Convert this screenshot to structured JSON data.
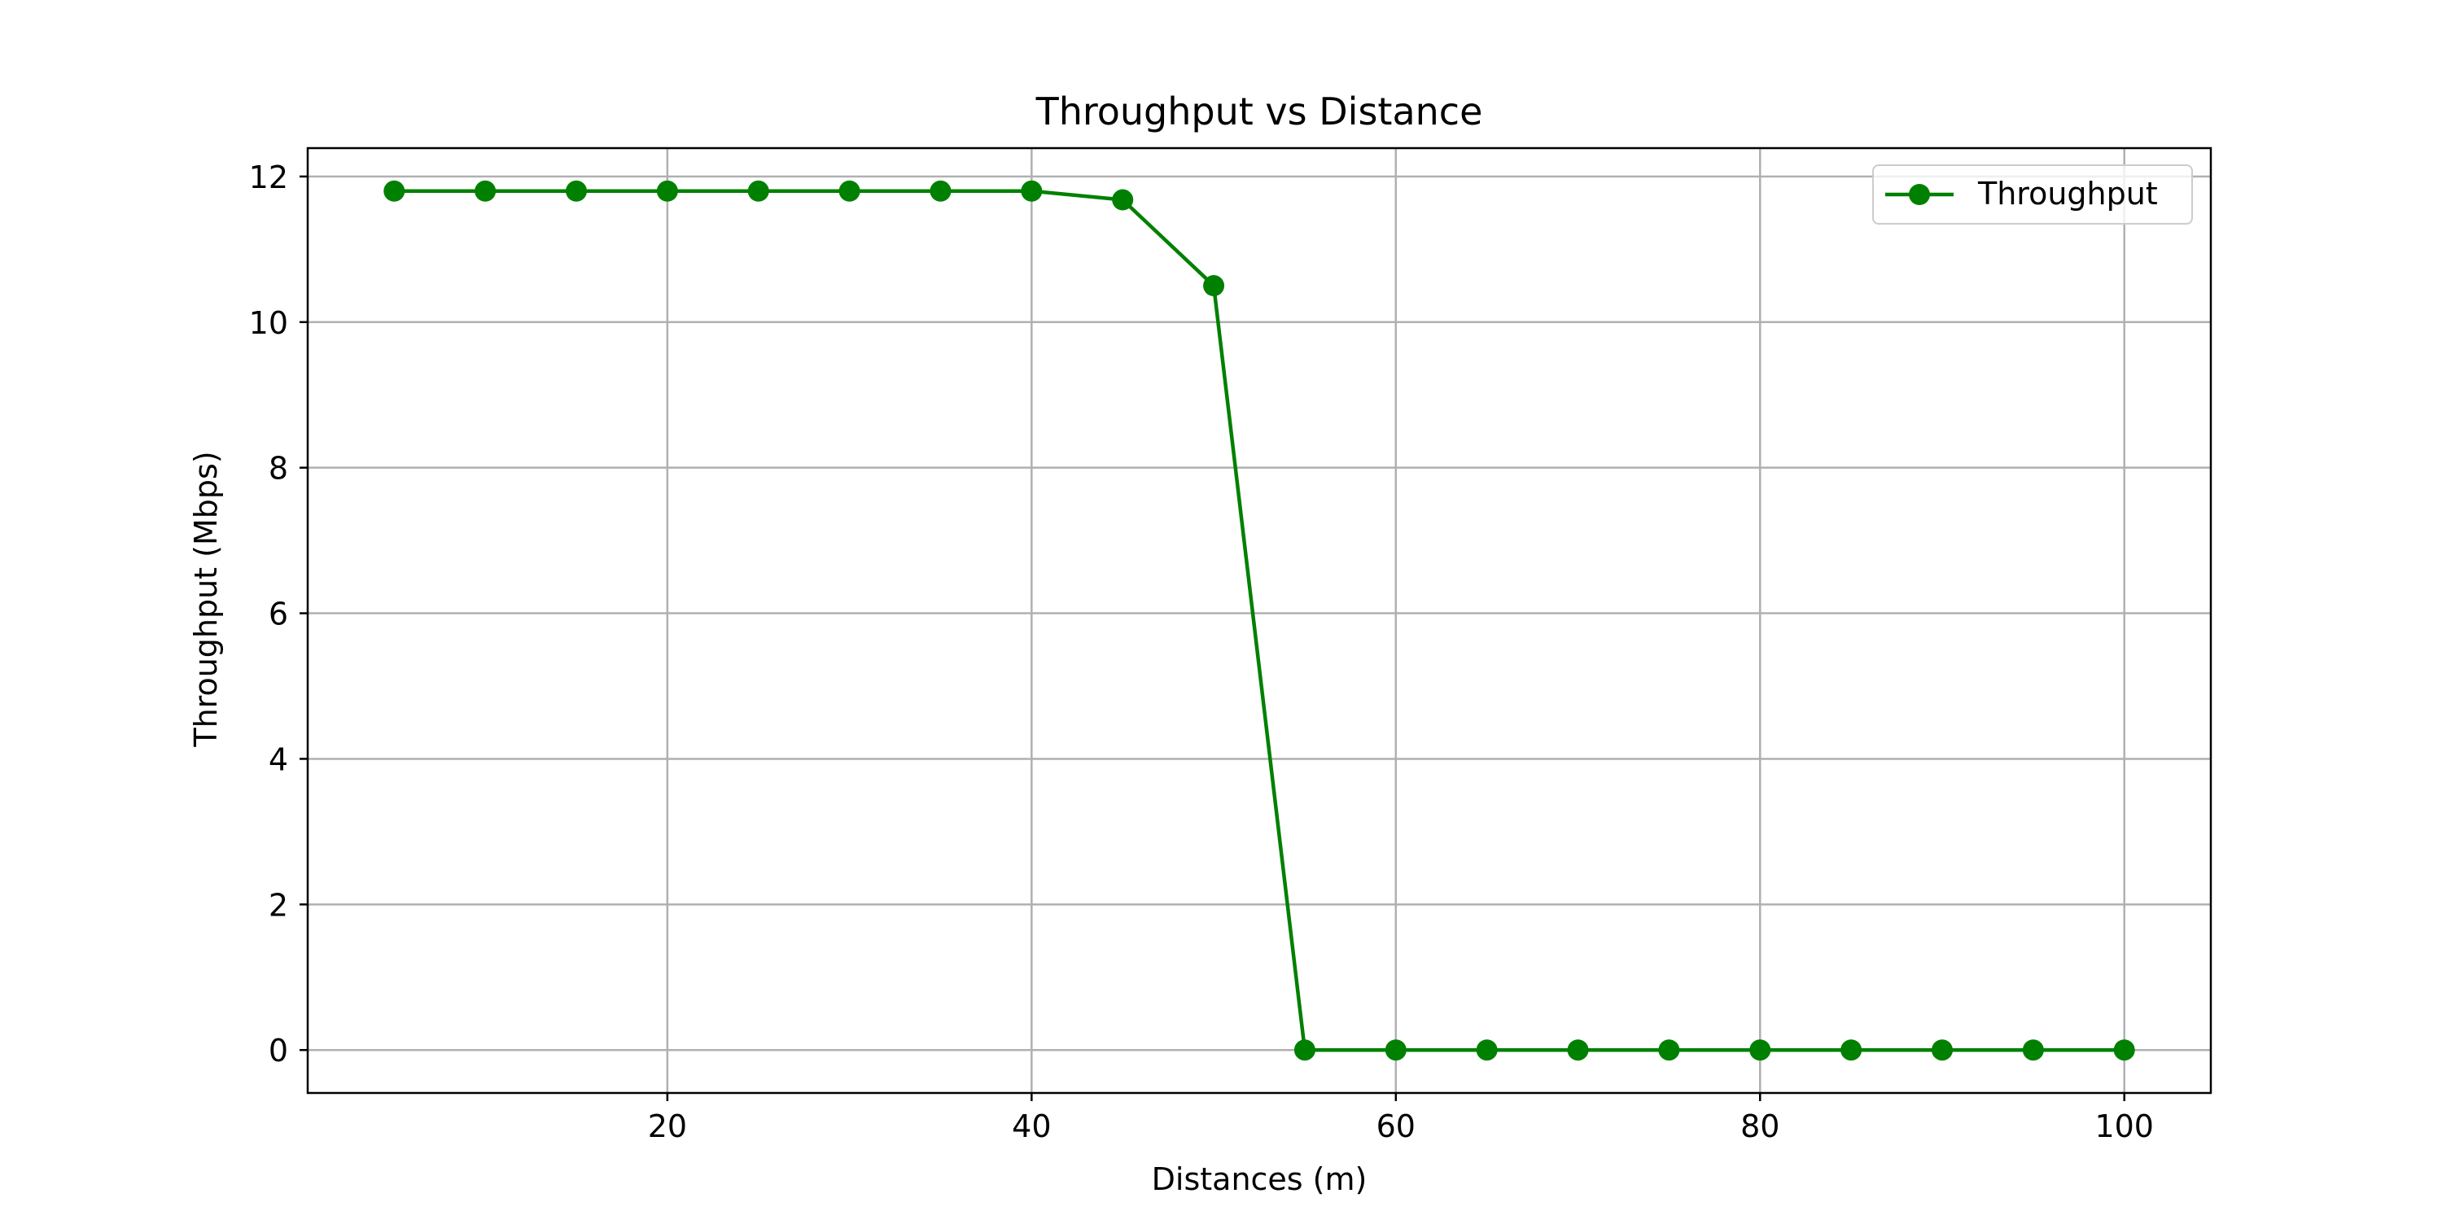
{
  "chart_data": {
    "type": "line",
    "title": "Throughput vs Distance",
    "xlabel": "Distances (m)",
    "ylabel": "Throughput (Mbps)",
    "xlim": [
      0.25,
      104.75
    ],
    "ylim": [
      -0.59,
      12.39
    ],
    "x_ticks": [
      20,
      40,
      60,
      80,
      100
    ],
    "y_ticks": [
      0,
      2,
      4,
      6,
      8,
      10,
      12
    ],
    "grid": true,
    "legend_position": "top-right",
    "series": [
      {
        "name": "Throughput",
        "color": "#008000",
        "marker": "circle",
        "x": [
          5,
          10,
          15,
          20,
          25,
          30,
          35,
          40,
          45,
          50,
          55,
          60,
          65,
          70,
          75,
          80,
          85,
          90,
          95,
          100
        ],
        "y": [
          11.8,
          11.8,
          11.8,
          11.8,
          11.8,
          11.8,
          11.8,
          11.8,
          11.68,
          10.5,
          0,
          0,
          0,
          0,
          0,
          0,
          0,
          0,
          0,
          0
        ]
      }
    ]
  }
}
